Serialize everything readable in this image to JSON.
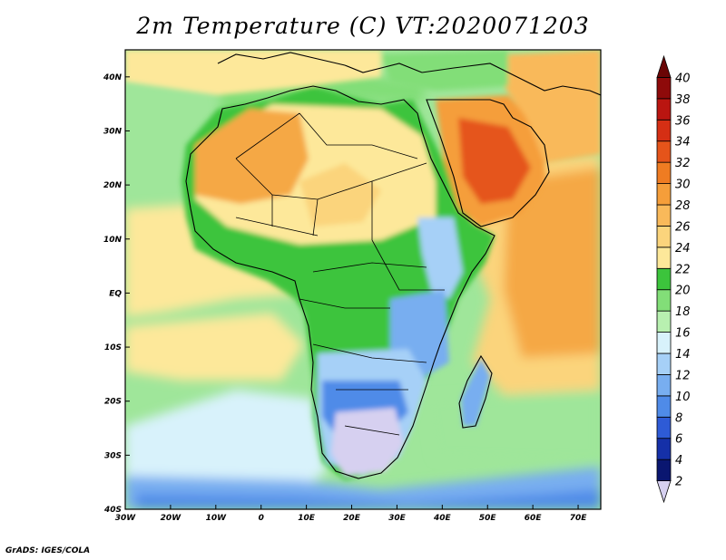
{
  "title": "2m Temperature (C) VT:2020071203",
  "credit": "GrADS: IGES/COLA",
  "map": {
    "projection": "lat-lon",
    "lon_range": [
      -30,
      75
    ],
    "lat_range": [
      -40,
      45
    ],
    "lon_ticks": [
      "30W",
      "20W",
      "10W",
      "0",
      "10E",
      "20E",
      "30E",
      "40E",
      "50E",
      "60E",
      "70E"
    ],
    "lat_ticks": [
      "40S",
      "30S",
      "20S",
      "10S",
      "EQ",
      "10N",
      "20N",
      "30N",
      "40N"
    ],
    "variable": "2m Temperature",
    "units": "C"
  },
  "colorbar": {
    "labels": [
      "2",
      "4",
      "6",
      "8",
      "10",
      "12",
      "14",
      "16",
      "18",
      "20",
      "22",
      "24",
      "26",
      "28",
      "30",
      "32",
      "34",
      "36",
      "38",
      "40"
    ],
    "colors": [
      "#d6d0f0",
      "#0a1670",
      "#1530a8",
      "#2e5bd6",
      "#4f8be8",
      "#78aef0",
      "#a6d0f7",
      "#d8f2fb",
      "#b8f0b0",
      "#82de78",
      "#3cc43c",
      "#fde89a",
      "#fbd47c",
      "#f9b95a",
      "#f59e3a",
      "#ef7c22",
      "#e5541a",
      "#d52f14",
      "#ba1510",
      "#8e0a0a",
      "#6a0505"
    ],
    "orientation": "vertical",
    "placement": "right"
  }
}
